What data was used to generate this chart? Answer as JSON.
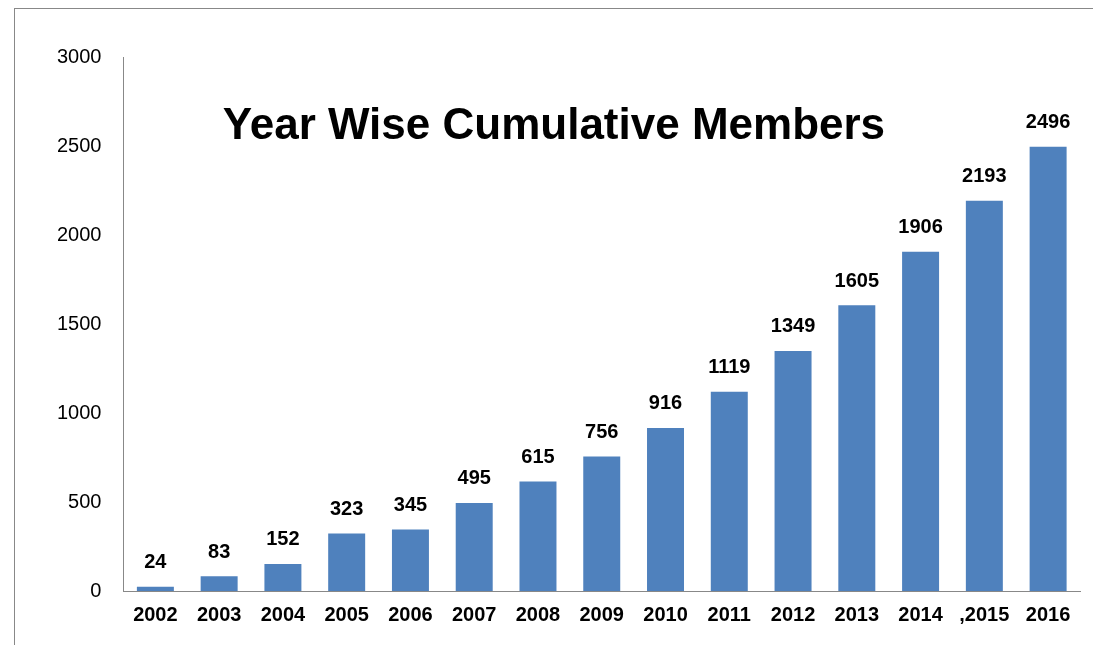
{
  "chart_data": {
    "type": "bar",
    "title": "Year Wise Cumulative Members",
    "categories": [
      "2002",
      "2003",
      "2004",
      "2005",
      "2006",
      "2007",
      "2008",
      "2009",
      "2010",
      "2011",
      "2012",
      "2013",
      "2014",
      ",2015",
      "2016"
    ],
    "values": [
      24,
      83,
      152,
      323,
      345,
      495,
      615,
      756,
      916,
      1119,
      1349,
      1605,
      1906,
      2193,
      2496
    ],
    "color": "#4f81bd",
    "ylim": [
      0,
      3000
    ],
    "yticks": [
      0,
      500,
      1000,
      1500,
      2000,
      2500,
      3000
    ],
    "grid": false,
    "legend": false,
    "data_labels": true
  }
}
